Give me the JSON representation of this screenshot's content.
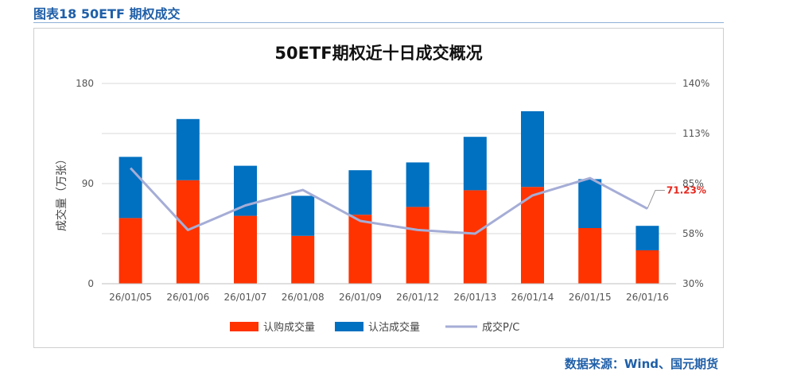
{
  "figure_caption": "图表18 50ETF 期权成交",
  "source_note": "数据来源：Wind、国元期货",
  "chart_data": {
    "type": "bar",
    "title": "50ETF期权近十日成交概况",
    "ylabel": "成交量（万张）",
    "categories": [
      "26/01/05",
      "26/01/06",
      "26/01/07",
      "26/01/08",
      "26/01/09",
      "26/01/12",
      "26/01/13",
      "26/01/14",
      "26/01/15",
      "26/01/16"
    ],
    "series": [
      {
        "name": "认购成交量",
        "type": "stacked-bar",
        "color": "#ff3300",
        "values": [
          59,
          93,
          61,
          43,
          62,
          69,
          84,
          87,
          50,
          30
        ]
      },
      {
        "name": "认沽成交量",
        "type": "stacked-bar",
        "color": "#0070c0",
        "values": [
          55,
          55,
          45,
          36,
          40,
          40,
          48,
          68,
          44,
          22
        ]
      },
      {
        "name": "成交P/C",
        "type": "line",
        "axis": "right",
        "color": "#a5add6",
        "values": [
          93.5,
          59.5,
          73.0,
          81.5,
          64.5,
          59.5,
          57.5,
          78.5,
          88.0,
          71.23
        ]
      }
    ],
    "ylim": [
      0,
      180
    ],
    "yticks": [
      "0",
      "90",
      "180"
    ],
    "y2lim": [
      30,
      140
    ],
    "y2ticks": [
      "30%",
      "58%",
      "85%",
      "113%",
      "140%"
    ],
    "annotation": "71.23%",
    "legend_position": "bottom"
  }
}
